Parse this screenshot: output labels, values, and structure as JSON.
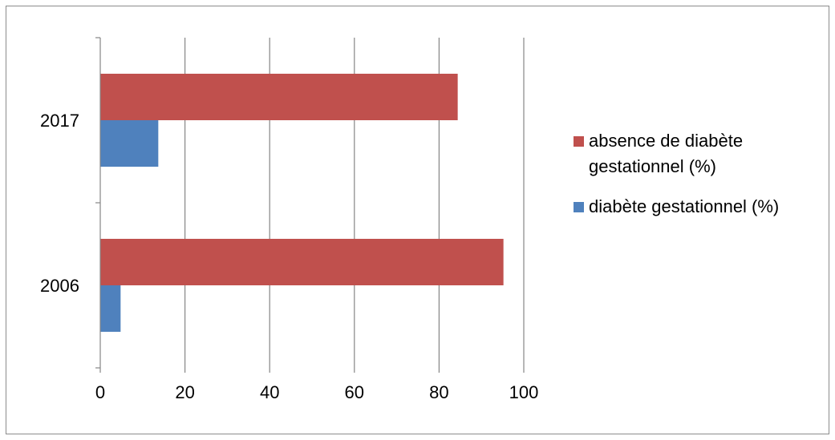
{
  "chart_data": {
    "type": "bar",
    "orientation": "horizontal",
    "categories": [
      "2006",
      "2017"
    ],
    "series": [
      {
        "name": "diabète gestationnel (%)",
        "values": [
          4.8,
          13.7
        ],
        "color": "#4f81bd"
      },
      {
        "name": "absence de diabète gestationnel (%)",
        "values": [
          95.2,
          84.4
        ],
        "color": "#c0504d"
      }
    ],
    "title": "",
    "xlabel": "",
    "ylabel": "",
    "xlim": [
      0,
      100
    ],
    "x_ticks": [
      "0",
      "20",
      "40",
      "60",
      "80",
      "100"
    ],
    "grid": true,
    "legend_position": "right"
  },
  "legend": {
    "items": [
      {
        "label": "absence de diabète gestationnel (%)",
        "color": "#c0504d"
      },
      {
        "label": "diabète gestationnel (%)",
        "color": "#4f81bd"
      }
    ]
  }
}
